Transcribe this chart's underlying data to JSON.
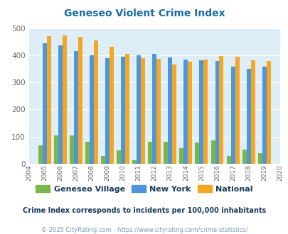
{
  "title": "Geneseo Violent Crime Index",
  "years": [
    2004,
    2005,
    2006,
    2007,
    2008,
    2009,
    2010,
    2011,
    2012,
    2013,
    2014,
    2015,
    2016,
    2017,
    2018,
    2019,
    2020
  ],
  "geneseo": [
    0,
    67,
    105,
    105,
    80,
    30,
    50,
    13,
    80,
    80,
    57,
    78,
    87,
    30,
    53,
    40,
    0
  ],
  "new_york": [
    0,
    445,
    435,
    415,
    400,
    388,
    394,
    400,
    406,
    392,
    385,
    381,
    378,
    357,
    350,
    357,
    0
  ],
  "national": [
    0,
    469,
    473,
    467,
    455,
    432,
    405,
    388,
    387,
    367,
    377,
    383,
    397,
    395,
    381,
    379,
    0
  ],
  "color_geneseo": "#7ab648",
  "color_new_york": "#4d96d9",
  "color_national": "#f5a623",
  "background_color": "#ddeef6",
  "ylim": [
    0,
    500
  ],
  "yticks": [
    0,
    100,
    200,
    300,
    400,
    500
  ],
  "subtitle": "Crime Index corresponds to incidents per 100,000 inhabitants",
  "footer": "© 2025 CityRating.com - https://www.cityrating.com/crime-statistics/",
  "title_color": "#1a6ca8",
  "subtitle_color": "#1a3a5c",
  "footer_color": "#7a9ab8"
}
